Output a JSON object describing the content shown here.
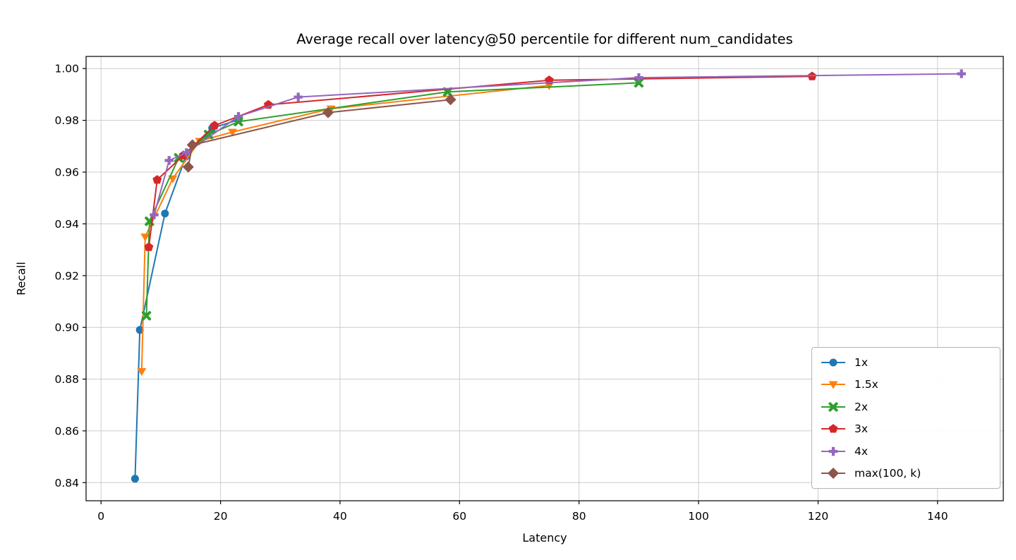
{
  "figure": {
    "background": "#ffffff"
  },
  "chart_data": {
    "type": "line",
    "title": "Average recall over latency@50 percentile for different num_candidates",
    "xlabel": "Latency",
    "ylabel": "Recall",
    "xlim": [
      -2.5,
      151
    ],
    "ylim": [
      0.833,
      1.0047
    ],
    "xticks": [
      0,
      20,
      40,
      60,
      80,
      100,
      120,
      140
    ],
    "yticks": [
      0.84,
      0.86,
      0.88,
      0.9,
      0.92,
      0.94,
      0.96,
      0.98,
      1.0
    ],
    "grid": true,
    "grid_color": "#cccccc",
    "legend_position": "lower right",
    "series": [
      {
        "name": "1x",
        "color": "#1f77b4",
        "marker": "circle",
        "x": [
          5.7,
          6.5,
          10.7,
          14.2,
          18.6,
          23
        ],
        "y": [
          0.8415,
          0.899,
          0.944,
          0.966,
          0.977,
          0.9802
        ]
      },
      {
        "name": "1.5x",
        "color": "#ff7f0e",
        "marker": "triangle-down",
        "x": [
          6.8,
          7.4,
          12,
          16.5,
          22,
          38.5,
          75
        ],
        "y": [
          0.883,
          0.935,
          0.9575,
          0.972,
          0.9755,
          0.9845,
          0.9935
        ]
      },
      {
        "name": "2x",
        "color": "#2ca02c",
        "marker": "x",
        "x": [
          7.6,
          8.1,
          13,
          18,
          23,
          58,
          90
        ],
        "y": [
          0.9045,
          0.941,
          0.9655,
          0.9745,
          0.9795,
          0.991,
          0.9945
        ]
      },
      {
        "name": "3x",
        "color": "#d62728",
        "marker": "pentagon",
        "x": [
          8,
          9.4,
          13.8,
          19,
          28,
          75,
          119
        ],
        "y": [
          0.931,
          0.957,
          0.9665,
          0.978,
          0.986,
          0.9955,
          0.997
        ]
      },
      {
        "name": "4x",
        "color": "#9467bd",
        "marker": "plus",
        "x": [
          8.9,
          11.4,
          14.3,
          23,
          33,
          90,
          144
        ],
        "y": [
          0.9435,
          0.9645,
          0.9675,
          0.9815,
          0.989,
          0.9965,
          0.998
        ]
      },
      {
        "name": "max(100, k)",
        "color": "#8c564b",
        "marker": "diamond",
        "x": [
          14.6,
          15.3,
          38,
          58.5
        ],
        "y": [
          0.962,
          0.9705,
          0.983,
          0.988
        ]
      }
    ]
  }
}
